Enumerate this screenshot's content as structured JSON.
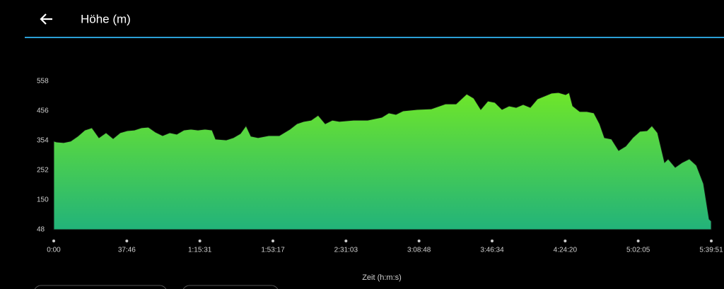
{
  "header": {
    "title": "Höhe (m)"
  },
  "chart_data": {
    "type": "area",
    "x_label": "Zeit (h:m:s)",
    "x": [
      0,
      88,
      307,
      526,
      745,
      965,
      1184,
      1403,
      1623,
      1842,
      2061,
      2280,
      2500,
      2719,
      2938,
      3157,
      3377,
      3596,
      3815,
      4034,
      4254,
      4473,
      4692,
      4911,
      5021,
      5350,
      5569,
      5788,
      5964,
      6117,
      6337,
      6666,
      6994,
      7323,
      7543,
      7762,
      7981,
      8200,
      8420,
      8639,
      8858,
      9297,
      9735,
      10174,
      10393,
      10612,
      10831,
      11270,
      11708,
      12147,
      12476,
      12805,
      13024,
      13243,
      13462,
      13682,
      13901,
      14120,
      14340,
      14559,
      14778,
      14997,
      15217,
      15436,
      15655,
      15874,
      15984,
      16094,
      16313,
      16532,
      16751,
      16927,
      17080,
      17299,
      17519,
      17738,
      17957,
      18177,
      18396,
      18550,
      18725,
      18944,
      19054,
      19273,
      19492,
      19711,
      19930,
      20150,
      20325,
      20391
    ],
    "values": [
      352,
      349,
      347,
      352,
      369,
      390,
      398,
      364,
      381,
      361,
      381,
      388,
      390,
      398,
      400,
      383,
      371,
      381,
      376,
      390,
      393,
      390,
      393,
      390,
      359,
      356,
      364,
      378,
      405,
      369,
      364,
      371,
      371,
      393,
      412,
      420,
      424,
      441,
      412,
      424,
      420,
      424,
      424,
      434,
      449,
      444,
      456,
      461,
      463,
      480,
      480,
      514,
      500,
      461,
      490,
      485,
      461,
      473,
      468,
      478,
      468,
      497,
      507,
      517,
      519,
      512,
      519,
      473,
      454,
      454,
      449,
      412,
      364,
      359,
      320,
      335,
      364,
      386,
      388,
      405,
      381,
      279,
      291,
      262,
      279,
      291,
      269,
      206,
      84,
      77
    ],
    "gradient": [
      "#6ee62a",
      "#22b37a"
    ],
    "xlim": [
      0,
      20391
    ],
    "xticks": [
      {
        "value": 0,
        "label": "0:00"
      },
      {
        "value": 2266,
        "label": "37:46"
      },
      {
        "value": 4531,
        "label": "1:15:31"
      },
      {
        "value": 6797,
        "label": "1:53:17"
      },
      {
        "value": 9063,
        "label": "2:31:03"
      },
      {
        "value": 11328,
        "label": "3:08:48"
      },
      {
        "value": 13594,
        "label": "3:46:34"
      },
      {
        "value": 15860,
        "label": "4:24:20"
      },
      {
        "value": 18125,
        "label": "5:02:05"
      },
      {
        "value": 20391,
        "label": "5:39:51"
      }
    ],
    "ylim": [
      48,
      558
    ],
    "yticks": [
      48,
      150,
      252,
      354,
      456,
      558
    ]
  }
}
